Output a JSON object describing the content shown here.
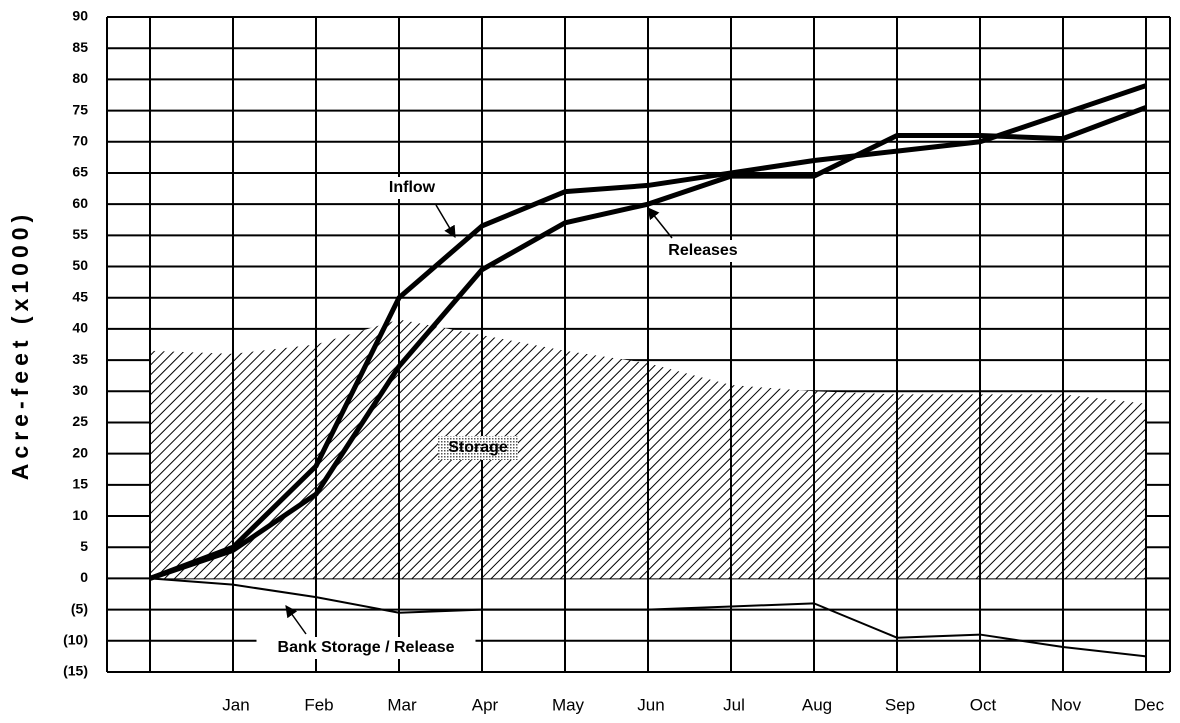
{
  "chart_data": {
    "type": "line",
    "y_label": "Acre-feet (x1000)",
    "categories": [
      null,
      "Jan",
      "Feb",
      "Mar",
      "Apr",
      "May",
      "Jun",
      "Jul",
      "Aug",
      "Sep",
      "Oct",
      "Nov",
      "Dec"
    ],
    "series": [
      {
        "name": "Inflow",
        "color": "#000000",
        "style": "line",
        "values": [
          0,
          5,
          18,
          45,
          56.5,
          62,
          63,
          65,
          67,
          68.5,
          70,
          74.5,
          79
        ]
      },
      {
        "name": "Releases",
        "color": "#000000",
        "style": "line",
        "values": [
          0,
          4.5,
          13.5,
          34,
          49.5,
          57,
          60,
          64.5,
          64.5,
          71,
          71,
          70.5,
          75.5
        ]
      },
      {
        "name": "Storage",
        "color": "#000000",
        "style": "hatched-area",
        "values": [
          36.5,
          36,
          37.5,
          41.5,
          39,
          36.5,
          34.5,
          31,
          30,
          29.5,
          29.5,
          29.5,
          28
        ]
      },
      {
        "name": "Bank Storage / Release",
        "color": "#000000",
        "style": "thin-line",
        "values": [
          0,
          -1,
          -3,
          -5.5,
          -5,
          -5,
          -5,
          -4.5,
          -4,
          -9.5,
          -9,
          -11,
          -12.5
        ]
      }
    ],
    "ylim": [
      -15,
      90
    ],
    "yticks": [
      {
        "value": -15,
        "label": "(15)"
      },
      {
        "value": -10,
        "label": "(10)"
      },
      {
        "value": -5,
        "label": "(5)"
      },
      0,
      5,
      10,
      15,
      20,
      25,
      30,
      35,
      40,
      45,
      50,
      55,
      60,
      65,
      70,
      75,
      80,
      85,
      90
    ],
    "grid": true
  }
}
